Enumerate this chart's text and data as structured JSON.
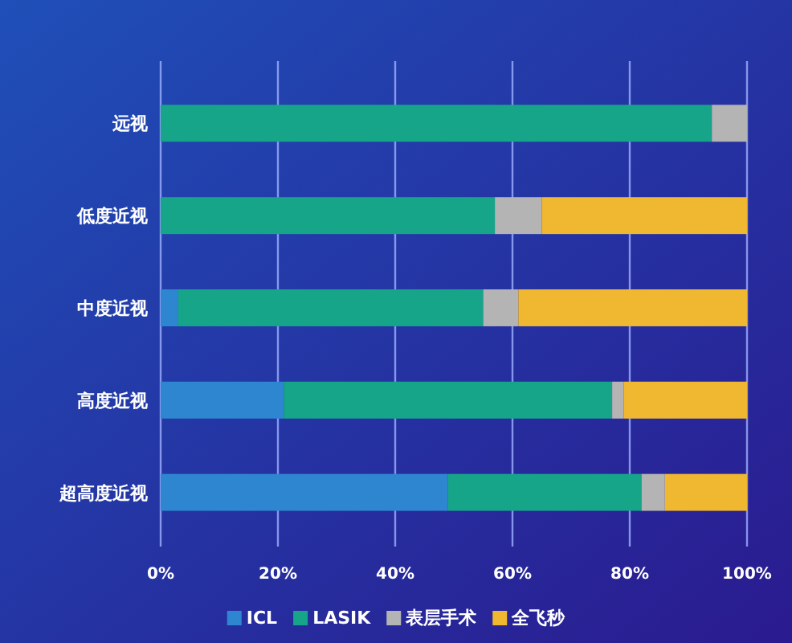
{
  "chart_data": {
    "type": "bar",
    "orientation": "horizontal",
    "stacked": true,
    "categories": [
      "远视",
      "低度近视",
      "中度近视",
      "高度近视",
      "超高度近视"
    ],
    "series": [
      {
        "name": "ICL",
        "color": "#2f86d0",
        "values": [
          0,
          0,
          3,
          21,
          49
        ]
      },
      {
        "name": "LASIK",
        "color": "#17a58a",
        "values": [
          94,
          57,
          52,
          56,
          33
        ]
      },
      {
        "name": "表层手术",
        "color": "#b4b4b4",
        "values": [
          6,
          8,
          6,
          2,
          4
        ]
      },
      {
        "name": "全飞秒",
        "color": "#f0b730",
        "values": [
          0,
          35,
          39,
          21,
          14
        ]
      }
    ],
    "xlim": [
      0,
      100
    ],
    "xticks": [
      {
        "value": 0,
        "label": "0%"
      },
      {
        "value": 20,
        "label": "20%"
      },
      {
        "value": 40,
        "label": "40%"
      },
      {
        "value": 60,
        "label": "60%"
      },
      {
        "value": 80,
        "label": "80%"
      },
      {
        "value": 100,
        "label": "100%"
      }
    ],
    "grid": "x",
    "legend": "bottom"
  }
}
